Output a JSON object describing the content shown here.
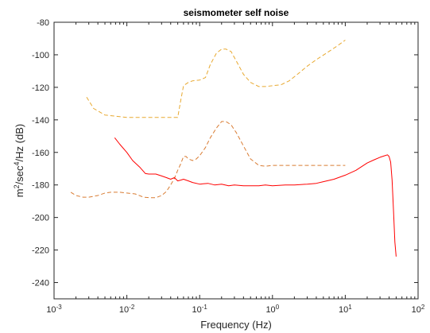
{
  "chart_data": {
    "type": "line",
    "title": "seismometer self noise",
    "xlabel": "Frequency (Hz)",
    "ylabel_parts": {
      "base1": "m",
      "sup1": "2",
      "base2": "/sec",
      "sup2": "4",
      "base3": "/Hz  (dB)"
    },
    "xscale": "log",
    "xlim": [
      0.001,
      100
    ],
    "ylim": [
      -250,
      -80
    ],
    "grid": false,
    "x_ticks": [
      {
        "value": 0.001,
        "base": "10",
        "exp": "-3"
      },
      {
        "value": 0.01,
        "base": "10",
        "exp": "-2"
      },
      {
        "value": 0.1,
        "base": "10",
        "exp": "-1"
      },
      {
        "value": 1,
        "base": "10",
        "exp": "0"
      },
      {
        "value": 10,
        "base": "10",
        "exp": "1"
      },
      {
        "value": 100,
        "base": "10",
        "exp": "2"
      }
    ],
    "y_ticks": [
      -80,
      -100,
      -120,
      -140,
      -160,
      -180,
      -200,
      -220,
      -240
    ],
    "series": [
      {
        "style": "dashed",
        "color": "#e8a930",
        "x": [
          0.0028,
          0.0035,
          0.005,
          0.01,
          0.02,
          0.03,
          0.04,
          0.05,
          0.055,
          0.06,
          0.07,
          0.08,
          0.1,
          0.12,
          0.14,
          0.17,
          0.2,
          0.23,
          0.27,
          0.32,
          0.4,
          0.5,
          0.65,
          0.8,
          1.0,
          1.3,
          1.7,
          2.2,
          3.0,
          4.0,
          5.5,
          7.5,
          10
        ],
        "y": [
          -126,
          -133,
          -137,
          -138.5,
          -138.5,
          -138.5,
          -138.5,
          -138.5,
          -128,
          -119,
          -117,
          -116,
          -115.5,
          -114,
          -106,
          -99,
          -96.5,
          -96.5,
          -98,
          -104,
          -112,
          -117,
          -119.5,
          -119.5,
          -119,
          -118.5,
          -116,
          -112,
          -107,
          -103,
          -99,
          -95,
          -91
        ]
      },
      {
        "style": "dashed",
        "color": "#d97c33",
        "x": [
          0.0017,
          0.002,
          0.0025,
          0.003,
          0.004,
          0.005,
          0.006,
          0.008,
          0.01,
          0.013,
          0.017,
          0.02,
          0.025,
          0.03,
          0.035,
          0.04,
          0.045,
          0.05,
          0.055,
          0.06,
          0.065,
          0.07,
          0.08,
          0.09,
          0.1,
          0.12,
          0.14,
          0.17,
          0.2,
          0.23,
          0.27,
          0.32,
          0.4,
          0.5,
          0.65,
          0.8,
          1.0,
          1.5,
          2,
          3,
          5,
          7,
          10
        ],
        "y": [
          -184.5,
          -186.5,
          -187.5,
          -187.5,
          -186.5,
          -185,
          -184.5,
          -184.5,
          -185,
          -185.5,
          -187.5,
          -187.8,
          -187.8,
          -186.5,
          -184,
          -180,
          -176,
          -171,
          -167,
          -162.5,
          -162.5,
          -164,
          -165,
          -164,
          -162,
          -157,
          -151,
          -145,
          -141,
          -141,
          -143,
          -148,
          -156,
          -164,
          -168,
          -168.5,
          -168,
          -168,
          -168,
          -168,
          -168,
          -168,
          -168
        ]
      },
      {
        "style": "solid",
        "color": "#ff0000",
        "x": [
          0.0068,
          0.008,
          0.01,
          0.012,
          0.015,
          0.018,
          0.02,
          0.025,
          0.03,
          0.035,
          0.04,
          0.045,
          0.05,
          0.055,
          0.06,
          0.07,
          0.08,
          0.1,
          0.13,
          0.16,
          0.2,
          0.25,
          0.3,
          0.4,
          0.5,
          0.65,
          0.8,
          1.0,
          1.5,
          2,
          3,
          4,
          5,
          7,
          10,
          14,
          20,
          25,
          30,
          35,
          38,
          40,
          42,
          44,
          46,
          48,
          50
        ],
        "y": [
          -151,
          -155,
          -160,
          -165,
          -169,
          -173,
          -173.3,
          -173.3,
          -174.5,
          -175.5,
          -176.5,
          -175.5,
          -177.5,
          -177,
          -176.5,
          -177.5,
          -178.5,
          -179.5,
          -179,
          -180,
          -179.5,
          -180.5,
          -180,
          -180.5,
          -180.5,
          -180.5,
          -180,
          -180.5,
          -180,
          -180,
          -179.5,
          -179,
          -178,
          -176.5,
          -174,
          -171,
          -166.5,
          -164.5,
          -163,
          -162,
          -161.5,
          -162.5,
          -166,
          -177,
          -196,
          -215,
          -224
        ]
      }
    ]
  }
}
